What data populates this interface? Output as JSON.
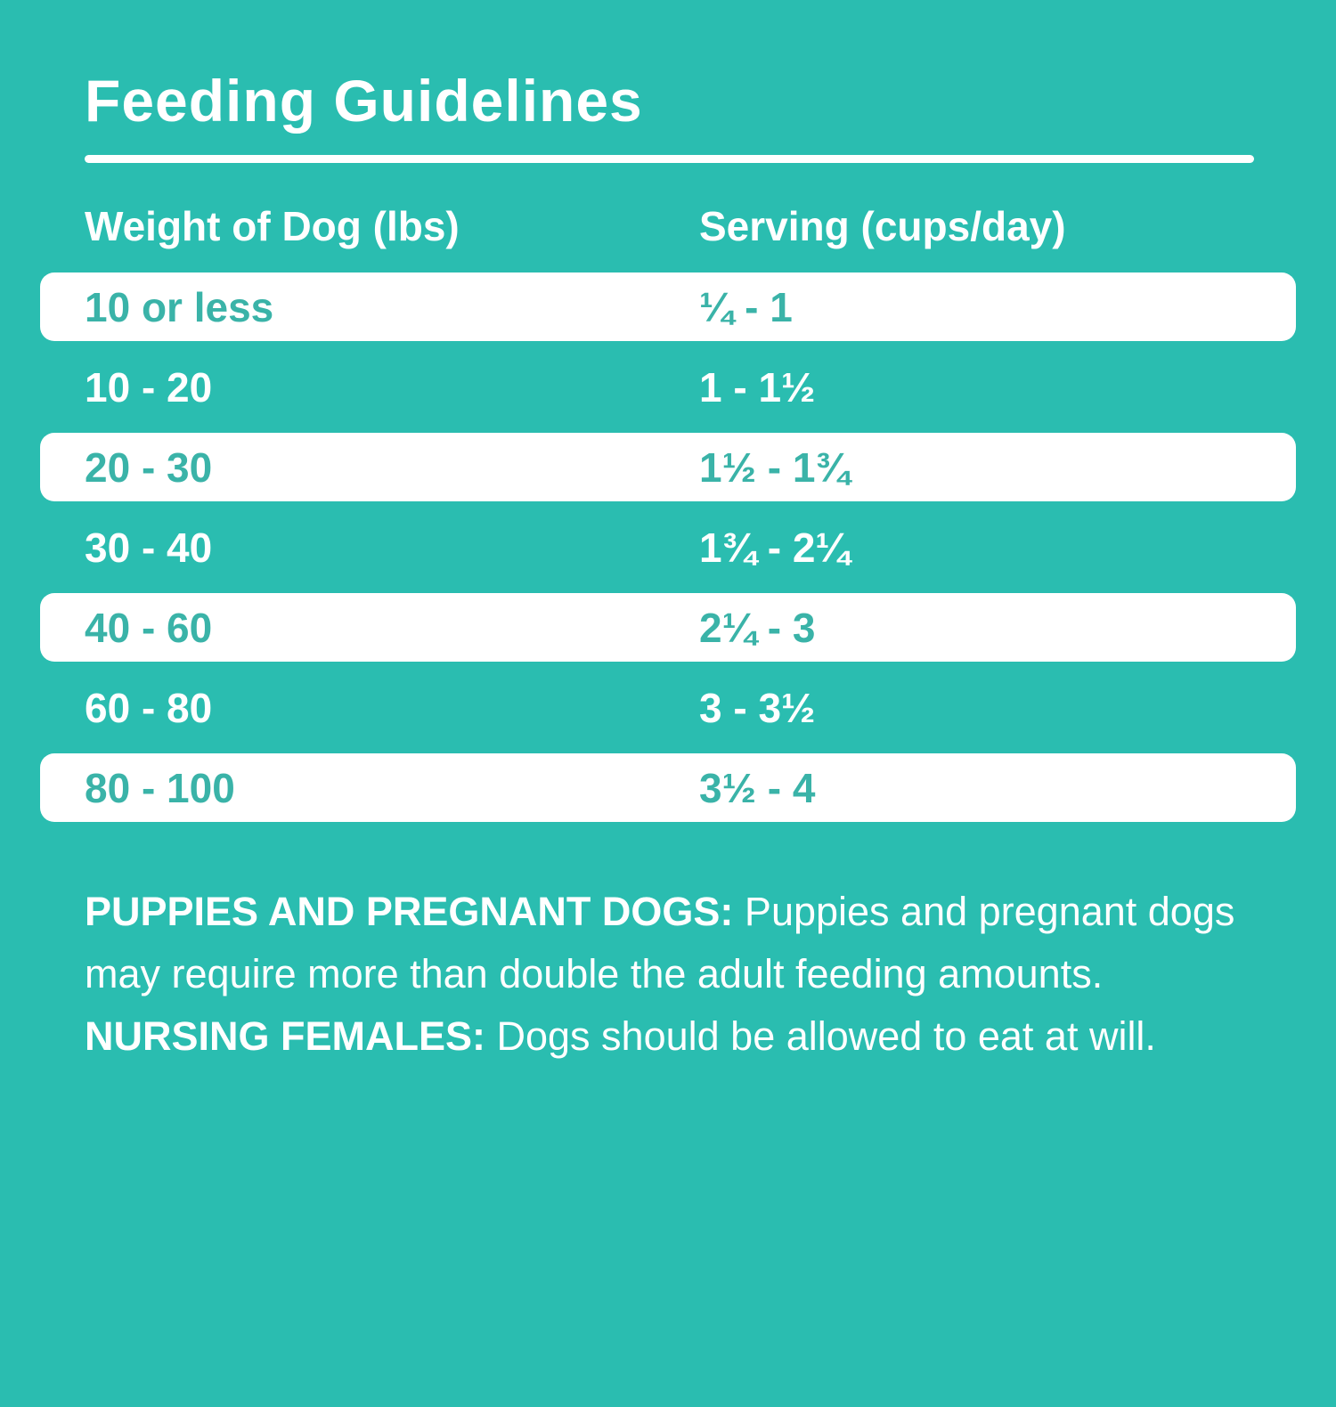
{
  "page": {
    "background_color": "#2abdb0",
    "row_highlight_color": "#ffffff",
    "accent_text_color": "#3ab3a8"
  },
  "title": "Feeding Guidelines",
  "table": {
    "headers": {
      "weight": "Weight of Dog (lbs)",
      "serving": "Serving (cups/day)"
    },
    "rows": [
      {
        "weight": "10 or less",
        "serving": "¼ - 1"
      },
      {
        "weight": "10 - 20",
        "serving": "1 - 1½"
      },
      {
        "weight": "20 - 30",
        "serving": "1½ - 1¾"
      },
      {
        "weight": "30 - 40",
        "serving": "1¾ - 2¼"
      },
      {
        "weight": "40 - 60",
        "serving": "2¼ - 3"
      },
      {
        "weight": "60 - 80",
        "serving": "3 - 3½"
      },
      {
        "weight": "80 - 100",
        "serving": "3½ - 4"
      }
    ]
  },
  "note": {
    "label_1": "PUPPIES AND PREGNANT DOGS:",
    "text_1": " Puppies and pregnant dogs may require more than double the adult feeding amounts. ",
    "label_2": "NURSING FEMALES:",
    "text_2": " Dogs should be allowed to eat at will."
  }
}
